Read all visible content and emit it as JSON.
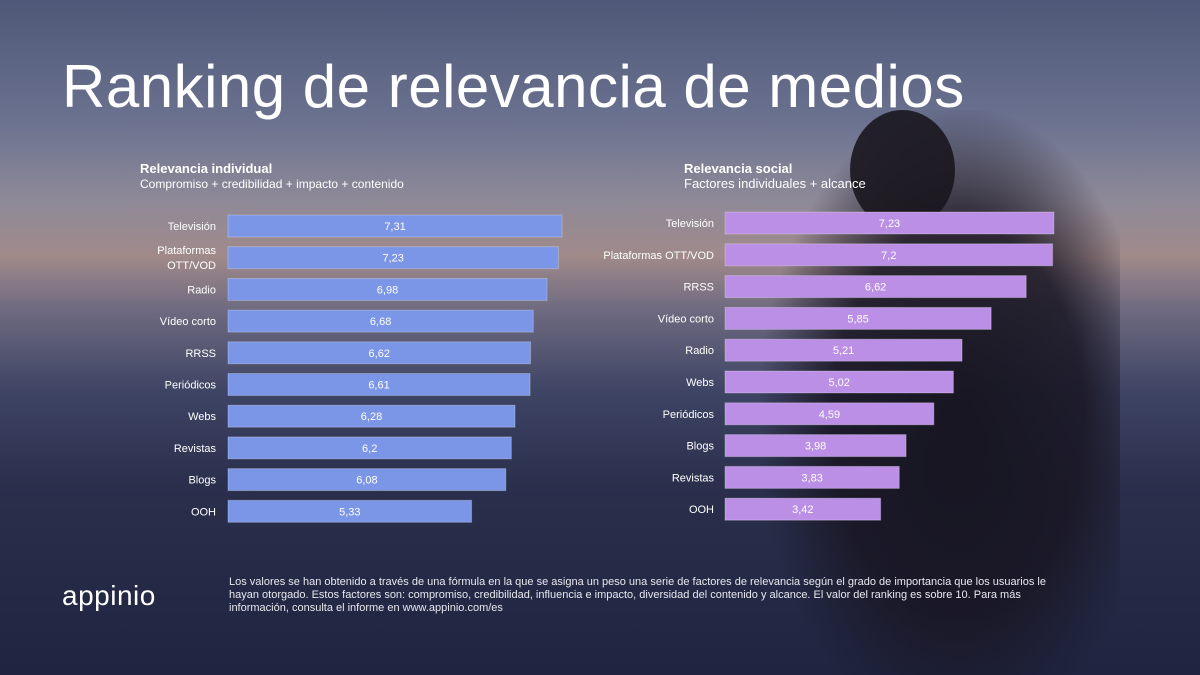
{
  "title": "Ranking de relevancia de medios",
  "chart_data": [
    {
      "type": "bar",
      "orientation": "horizontal",
      "title": "Relevancia individual",
      "subtitle": "Compromiso + credibilidad + impacto + contenido",
      "color": "#7b96e6",
      "categories": [
        "Televisión",
        "Plataformas OTT/VOD",
        "Radio",
        "Vídeo corto",
        "RRSS",
        "Periódicos",
        "Webs",
        "Revistas",
        "Blogs",
        "OOH"
      ],
      "category_lines": [
        [
          "Televisión"
        ],
        [
          "Plataformas",
          "OTT/VOD"
        ],
        [
          "Radio"
        ],
        [
          "Vídeo corto"
        ],
        [
          "RRSS"
        ],
        [
          "Periódicos"
        ],
        [
          "Webs"
        ],
        [
          "Revistas"
        ],
        [
          "Blogs"
        ],
        [
          "OOH"
        ]
      ],
      "values": [
        7.31,
        7.23,
        6.98,
        6.68,
        6.62,
        6.61,
        6.28,
        6.2,
        6.08,
        5.33
      ],
      "labels": [
        "7,31",
        "7,23",
        "6,98",
        "6,68",
        "6,62",
        "6,61",
        "6,28",
        "6,2",
        "6,08",
        "5,33"
      ]
    },
    {
      "type": "bar",
      "orientation": "horizontal",
      "title": "Relevancia social",
      "subtitle": "Factores individuales + alcance",
      "color": "#bb8fe6",
      "categories": [
        "Televisión",
        "Plataformas OTT/VOD",
        "RRSS",
        "Vídeo corto",
        "Radio",
        "Webs",
        "Periódicos",
        "Blogs",
        "Revistas",
        "OOH"
      ],
      "category_lines": [
        [
          "Televisión"
        ],
        [
          "Plataformas OTT/VOD"
        ],
        [
          "RRSS"
        ],
        [
          "Vídeo corto"
        ],
        [
          "Radio"
        ],
        [
          "Webs"
        ],
        [
          "Periódicos"
        ],
        [
          "Blogs"
        ],
        [
          "Revistas"
        ],
        [
          "OOH"
        ]
      ],
      "values": [
        7.23,
        7.2,
        6.62,
        5.85,
        5.21,
        5.02,
        4.59,
        3.98,
        3.83,
        3.42
      ],
      "labels": [
        "7,23",
        "7,2",
        "6,62",
        "5,85",
        "5,21",
        "5,02",
        "4,59",
        "3,98",
        "3,83",
        "3,42"
      ]
    }
  ],
  "footer": {
    "logo": "appinio",
    "note": "Los valores se han obtenido a través de una fórmula en la que se asigna un peso una serie de factores de relevancia según el grado de importancia que los usuarios le hayan otorgado. Estos factores son: compromiso, credibilidad, influencia e impacto, diversidad del contenido y alcance. El valor del ranking es sobre 10. Para más información, consulta el informe en www.appinio.com/es"
  }
}
